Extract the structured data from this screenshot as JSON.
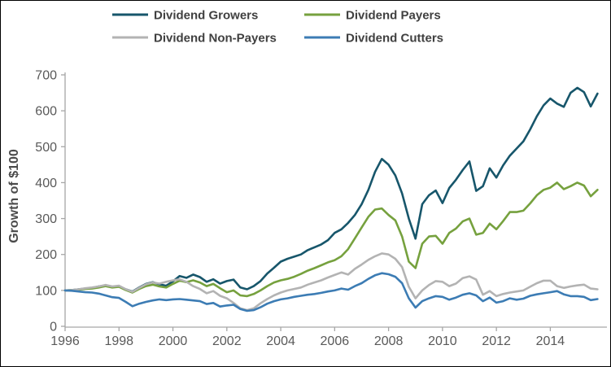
{
  "chart_data": {
    "type": "line",
    "title": "",
    "ylabel": "Growth of $100",
    "xlabel": "",
    "grid": false,
    "legend_position": "top",
    "x_start": 1996,
    "x_step": 0.25,
    "xlim": [
      1996,
      2016.1
    ],
    "ylim": [
      0,
      700
    ],
    "x_ticks": [
      1996,
      1998,
      2000,
      2002,
      2004,
      2006,
      2008,
      2010,
      2012,
      2014
    ],
    "y_ticks": [
      0,
      100,
      200,
      300,
      400,
      500,
      600,
      700
    ],
    "series": [
      {
        "name": "Dividend Growers",
        "color": "#17566b",
        "values": [
          100,
          101,
          103,
          105,
          107,
          111,
          114,
          110,
          112,
          103,
          97,
          108,
          118,
          123,
          117,
          113,
          125,
          140,
          135,
          144,
          137,
          124,
          131,
          119,
          126,
          130,
          108,
          103,
          112,
          126,
          147,
          163,
          180,
          188,
          194,
          200,
          212,
          220,
          228,
          240,
          260,
          270,
          288,
          310,
          340,
          380,
          430,
          466,
          450,
          420,
          370,
          300,
          244,
          340,
          365,
          378,
          343,
          385,
          408,
          435,
          459,
          377,
          390,
          440,
          414,
          448,
          475,
          495,
          515,
          548,
          585,
          615,
          634,
          620,
          611,
          650,
          664,
          652,
          612,
          648
        ]
      },
      {
        "name": "Dividend Payers",
        "color": "#76a13e",
        "values": [
          100,
          101,
          102,
          104,
          105,
          108,
          112,
          108,
          110,
          101,
          94,
          104,
          112,
          116,
          111,
          108,
          118,
          127,
          123,
          128,
          122,
          112,
          118,
          106,
          95,
          100,
          86,
          84,
          90,
          100,
          112,
          122,
          128,
          132,
          138,
          146,
          155,
          162,
          170,
          178,
          184,
          195,
          215,
          245,
          275,
          305,
          325,
          328,
          310,
          295,
          250,
          180,
          162,
          230,
          250,
          252,
          230,
          260,
          272,
          292,
          300,
          255,
          260,
          286,
          270,
          293,
          318,
          318,
          322,
          342,
          365,
          380,
          386,
          400,
          382,
          390,
          400,
          392,
          362,
          380
        ]
      },
      {
        "name": "Dividend Non-Payers",
        "color": "#b3b3b3",
        "values": [
          100,
          101,
          103,
          106,
          108,
          111,
          115,
          111,
          113,
          103,
          96,
          107,
          117,
          122,
          119,
          124,
          128,
          131,
          124,
          112,
          104,
          92,
          98,
          85,
          78,
          65,
          50,
          45,
          50,
          64,
          76,
          86,
          94,
          100,
          104,
          108,
          116,
          122,
          128,
          136,
          143,
          150,
          144,
          160,
          172,
          185,
          195,
          203,
          200,
          188,
          165,
          110,
          78,
          100,
          115,
          126,
          124,
          112,
          119,
          134,
          139,
          130,
          88,
          98,
          84,
          90,
          94,
          97,
          100,
          110,
          120,
          127,
          127,
          112,
          107,
          111,
          114,
          116,
          105,
          103
        ]
      },
      {
        "name": "Dividend Cutters",
        "color": "#3c7cb4",
        "values": [
          100,
          99,
          97,
          95,
          94,
          91,
          86,
          81,
          79,
          68,
          56,
          63,
          68,
          72,
          75,
          73,
          75,
          76,
          74,
          72,
          70,
          62,
          65,
          55,
          58,
          60,
          48,
          43,
          45,
          53,
          63,
          70,
          75,
          78,
          82,
          85,
          88,
          90,
          93,
          97,
          100,
          105,
          102,
          112,
          120,
          132,
          142,
          148,
          145,
          138,
          120,
          78,
          52,
          70,
          78,
          84,
          82,
          74,
          80,
          88,
          92,
          86,
          70,
          80,
          66,
          70,
          78,
          74,
          77,
          85,
          89,
          92,
          95,
          98,
          89,
          84,
          84,
          82,
          73,
          76
        ]
      }
    ]
  },
  "colors": {
    "axis": "#a6a6a6",
    "tick_label": "#595959",
    "legend_text": "#404040",
    "background": "#ffffff",
    "border": "#000000"
  }
}
